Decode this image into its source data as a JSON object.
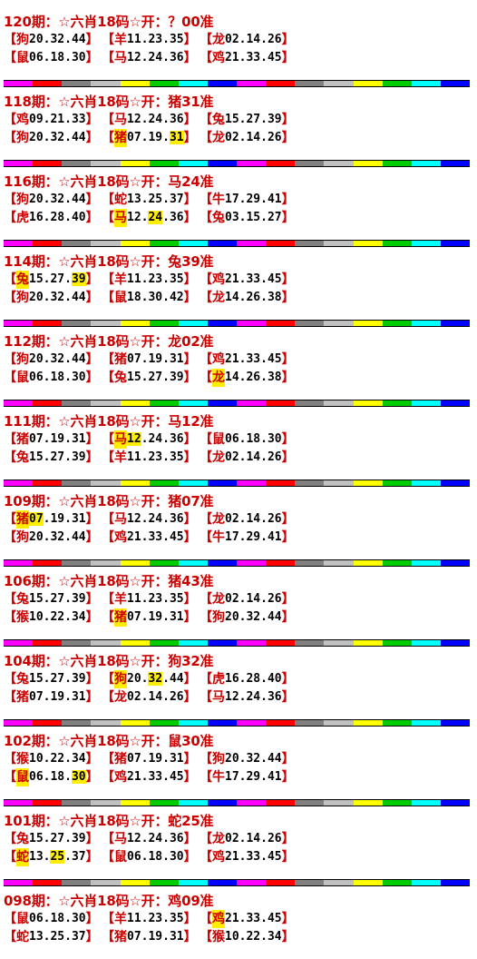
{
  "bar_colors": [
    "#ff00ff",
    "#ff0000",
    "#808080",
    "#c0c0c0",
    "#ffff00",
    "#00cc00",
    "#00ffff",
    "#0000ff",
    "#ff00ff",
    "#ff0000",
    "#808080",
    "#c0c0c0",
    "#ffff00",
    "#00cc00",
    "#00ffff",
    "#0000ff"
  ],
  "highlight_color": "#ffee00",
  "title_color": "#cc0000",
  "periods": [
    {
      "title": "120期：☆六肖18码☆开：？00准",
      "rows": [
        [
          {
            "animal": "狗",
            "nums": "20.32.44",
            "hl_animal": false,
            "hl_num": ""
          },
          {
            "animal": "羊",
            "nums": "11.23.35",
            "hl_animal": false,
            "hl_num": ""
          },
          {
            "animal": "龙",
            "nums": "02.14.26",
            "hl_animal": false,
            "hl_num": ""
          }
        ],
        [
          {
            "animal": "鼠",
            "nums": "06.18.30",
            "hl_animal": false,
            "hl_num": ""
          },
          {
            "animal": "马",
            "nums": "12.24.36",
            "hl_animal": false,
            "hl_num": ""
          },
          {
            "animal": "鸡",
            "nums": "21.33.45",
            "hl_animal": false,
            "hl_num": ""
          }
        ]
      ]
    },
    {
      "title": "118期：☆六肖18码☆开：猪31准",
      "rows": [
        [
          {
            "animal": "鸡",
            "nums": "09.21.33",
            "hl_animal": false,
            "hl_num": ""
          },
          {
            "animal": "马",
            "nums": "12.24.36",
            "hl_animal": false,
            "hl_num": ""
          },
          {
            "animal": "兔",
            "nums": "15.27.39",
            "hl_animal": false,
            "hl_num": ""
          }
        ],
        [
          {
            "animal": "狗",
            "nums": "20.32.44",
            "hl_animal": false,
            "hl_num": ""
          },
          {
            "animal": "猪",
            "nums": "07.19.31",
            "hl_animal": true,
            "hl_num": "31"
          },
          {
            "animal": "龙",
            "nums": "02.14.26",
            "hl_animal": false,
            "hl_num": ""
          }
        ]
      ]
    },
    {
      "title": "116期：☆六肖18码☆开：马24准",
      "rows": [
        [
          {
            "animal": "狗",
            "nums": "20.32.44",
            "hl_animal": false,
            "hl_num": ""
          },
          {
            "animal": "蛇",
            "nums": "13.25.37",
            "hl_animal": false,
            "hl_num": ""
          },
          {
            "animal": "牛",
            "nums": "17.29.41",
            "hl_animal": false,
            "hl_num": ""
          }
        ],
        [
          {
            "animal": "虎",
            "nums": "16.28.40",
            "hl_animal": false,
            "hl_num": ""
          },
          {
            "animal": "马",
            "nums": "12.24.36",
            "hl_animal": true,
            "hl_num": "24"
          },
          {
            "animal": "兔",
            "nums": "03.15.27",
            "hl_animal": false,
            "hl_num": ""
          }
        ]
      ]
    },
    {
      "title": "114期：☆六肖18码☆开：兔39准",
      "rows": [
        [
          {
            "animal": "兔",
            "nums": "15.27.39",
            "hl_animal": true,
            "hl_num": "39"
          },
          {
            "animal": "羊",
            "nums": "11.23.35",
            "hl_animal": false,
            "hl_num": ""
          },
          {
            "animal": "鸡",
            "nums": "21.33.45",
            "hl_animal": false,
            "hl_num": ""
          }
        ],
        [
          {
            "animal": "狗",
            "nums": "20.32.44",
            "hl_animal": false,
            "hl_num": ""
          },
          {
            "animal": "鼠",
            "nums": "18.30.42",
            "hl_animal": false,
            "hl_num": ""
          },
          {
            "animal": "龙",
            "nums": "14.26.38",
            "hl_animal": false,
            "hl_num": ""
          }
        ]
      ]
    },
    {
      "title": "112期：☆六肖18码☆开：龙02准",
      "rows": [
        [
          {
            "animal": "狗",
            "nums": "20.32.44",
            "hl_animal": false,
            "hl_num": ""
          },
          {
            "animal": "猪",
            "nums": "07.19.31",
            "hl_animal": false,
            "hl_num": ""
          },
          {
            "animal": "鸡",
            "nums": "21.33.45",
            "hl_animal": false,
            "hl_num": ""
          }
        ],
        [
          {
            "animal": "鼠",
            "nums": "06.18.30",
            "hl_animal": false,
            "hl_num": ""
          },
          {
            "animal": "兔",
            "nums": "15.27.39",
            "hl_animal": false,
            "hl_num": ""
          },
          {
            "animal": "龙",
            "nums": "14.26.38",
            "hl_animal": true,
            "hl_num": ""
          }
        ]
      ]
    },
    {
      "title": "111期：☆六肖18码☆开：马12准",
      "rows": [
        [
          {
            "animal": "猪",
            "nums": "07.19.31",
            "hl_animal": false,
            "hl_num": ""
          },
          {
            "animal": "马",
            "nums": "12.24.36",
            "hl_animal": true,
            "hl_num": "12"
          },
          {
            "animal": "鼠",
            "nums": "06.18.30",
            "hl_animal": false,
            "hl_num": ""
          }
        ],
        [
          {
            "animal": "兔",
            "nums": "15.27.39",
            "hl_animal": false,
            "hl_num": ""
          },
          {
            "animal": "羊",
            "nums": "11.23.35",
            "hl_animal": false,
            "hl_num": ""
          },
          {
            "animal": "龙",
            "nums": "02.14.26",
            "hl_animal": false,
            "hl_num": ""
          }
        ]
      ]
    },
    {
      "title": "109期：☆六肖18码☆开：猪07准",
      "rows": [
        [
          {
            "animal": "猪",
            "nums": "07.19.31",
            "hl_animal": true,
            "hl_num": "07"
          },
          {
            "animal": "马",
            "nums": "12.24.36",
            "hl_animal": false,
            "hl_num": ""
          },
          {
            "animal": "龙",
            "nums": "02.14.26",
            "hl_animal": false,
            "hl_num": ""
          }
        ],
        [
          {
            "animal": "狗",
            "nums": "20.32.44",
            "hl_animal": false,
            "hl_num": ""
          },
          {
            "animal": "鸡",
            "nums": "21.33.45",
            "hl_animal": false,
            "hl_num": ""
          },
          {
            "animal": "牛",
            "nums": "17.29.41",
            "hl_animal": false,
            "hl_num": ""
          }
        ]
      ]
    },
    {
      "title": "106期：☆六肖18码☆开：猪43准",
      "rows": [
        [
          {
            "animal": "兔",
            "nums": "15.27.39",
            "hl_animal": false,
            "hl_num": ""
          },
          {
            "animal": "羊",
            "nums": "11.23.35",
            "hl_animal": false,
            "hl_num": ""
          },
          {
            "animal": "龙",
            "nums": "02.14.26",
            "hl_animal": false,
            "hl_num": ""
          }
        ],
        [
          {
            "animal": "猴",
            "nums": "10.22.34",
            "hl_animal": false,
            "hl_num": ""
          },
          {
            "animal": "猪",
            "nums": "07.19.31",
            "hl_animal": true,
            "hl_num": ""
          },
          {
            "animal": "狗",
            "nums": "20.32.44",
            "hl_animal": false,
            "hl_num": ""
          }
        ]
      ]
    },
    {
      "title": "104期：☆六肖18码☆开：狗32准",
      "rows": [
        [
          {
            "animal": "兔",
            "nums": "15.27.39",
            "hl_animal": false,
            "hl_num": ""
          },
          {
            "animal": "狗",
            "nums": "20.32.44",
            "hl_animal": true,
            "hl_num": "32"
          },
          {
            "animal": "虎",
            "nums": "16.28.40",
            "hl_animal": false,
            "hl_num": ""
          }
        ],
        [
          {
            "animal": "猪",
            "nums": "07.19.31",
            "hl_animal": false,
            "hl_num": ""
          },
          {
            "animal": "龙",
            "nums": "02.14.26",
            "hl_animal": false,
            "hl_num": ""
          },
          {
            "animal": "马",
            "nums": "12.24.36",
            "hl_animal": false,
            "hl_num": ""
          }
        ]
      ]
    },
    {
      "title": "102期：☆六肖18码☆开：鼠30准",
      "rows": [
        [
          {
            "animal": "猴",
            "nums": "10.22.34",
            "hl_animal": false,
            "hl_num": ""
          },
          {
            "animal": "猪",
            "nums": "07.19.31",
            "hl_animal": false,
            "hl_num": ""
          },
          {
            "animal": "狗",
            "nums": "20.32.44",
            "hl_animal": false,
            "hl_num": ""
          }
        ],
        [
          {
            "animal": "鼠",
            "nums": "06.18.30",
            "hl_animal": true,
            "hl_num": "30"
          },
          {
            "animal": "鸡",
            "nums": "21.33.45",
            "hl_animal": false,
            "hl_num": ""
          },
          {
            "animal": "牛",
            "nums": "17.29.41",
            "hl_animal": false,
            "hl_num": ""
          }
        ]
      ]
    },
    {
      "title": "101期：☆六肖18码☆开：蛇25准",
      "rows": [
        [
          {
            "animal": "兔",
            "nums": "15.27.39",
            "hl_animal": false,
            "hl_num": ""
          },
          {
            "animal": "马",
            "nums": "12.24.36",
            "hl_animal": false,
            "hl_num": ""
          },
          {
            "animal": "龙",
            "nums": "02.14.26",
            "hl_animal": false,
            "hl_num": ""
          }
        ],
        [
          {
            "animal": "蛇",
            "nums": "13.25.37",
            "hl_animal": true,
            "hl_num": "25"
          },
          {
            "animal": "鼠",
            "nums": "06.18.30",
            "hl_animal": false,
            "hl_num": ""
          },
          {
            "animal": "鸡",
            "nums": "21.33.45",
            "hl_animal": false,
            "hl_num": ""
          }
        ]
      ]
    },
    {
      "title": "098期：☆六肖18码☆开：鸡09准",
      "rows": [
        [
          {
            "animal": "鼠",
            "nums": "06.18.30",
            "hl_animal": false,
            "hl_num": ""
          },
          {
            "animal": "羊",
            "nums": "11.23.35",
            "hl_animal": false,
            "hl_num": ""
          },
          {
            "animal": "鸡",
            "nums": "21.33.45",
            "hl_animal": true,
            "hl_num": ""
          }
        ],
        [
          {
            "animal": "蛇",
            "nums": "13.25.37",
            "hl_animal": false,
            "hl_num": ""
          },
          {
            "animal": "猪",
            "nums": "07.19.31",
            "hl_animal": false,
            "hl_num": ""
          },
          {
            "animal": "猴",
            "nums": "10.22.34",
            "hl_animal": false,
            "hl_num": ""
          }
        ]
      ]
    }
  ]
}
